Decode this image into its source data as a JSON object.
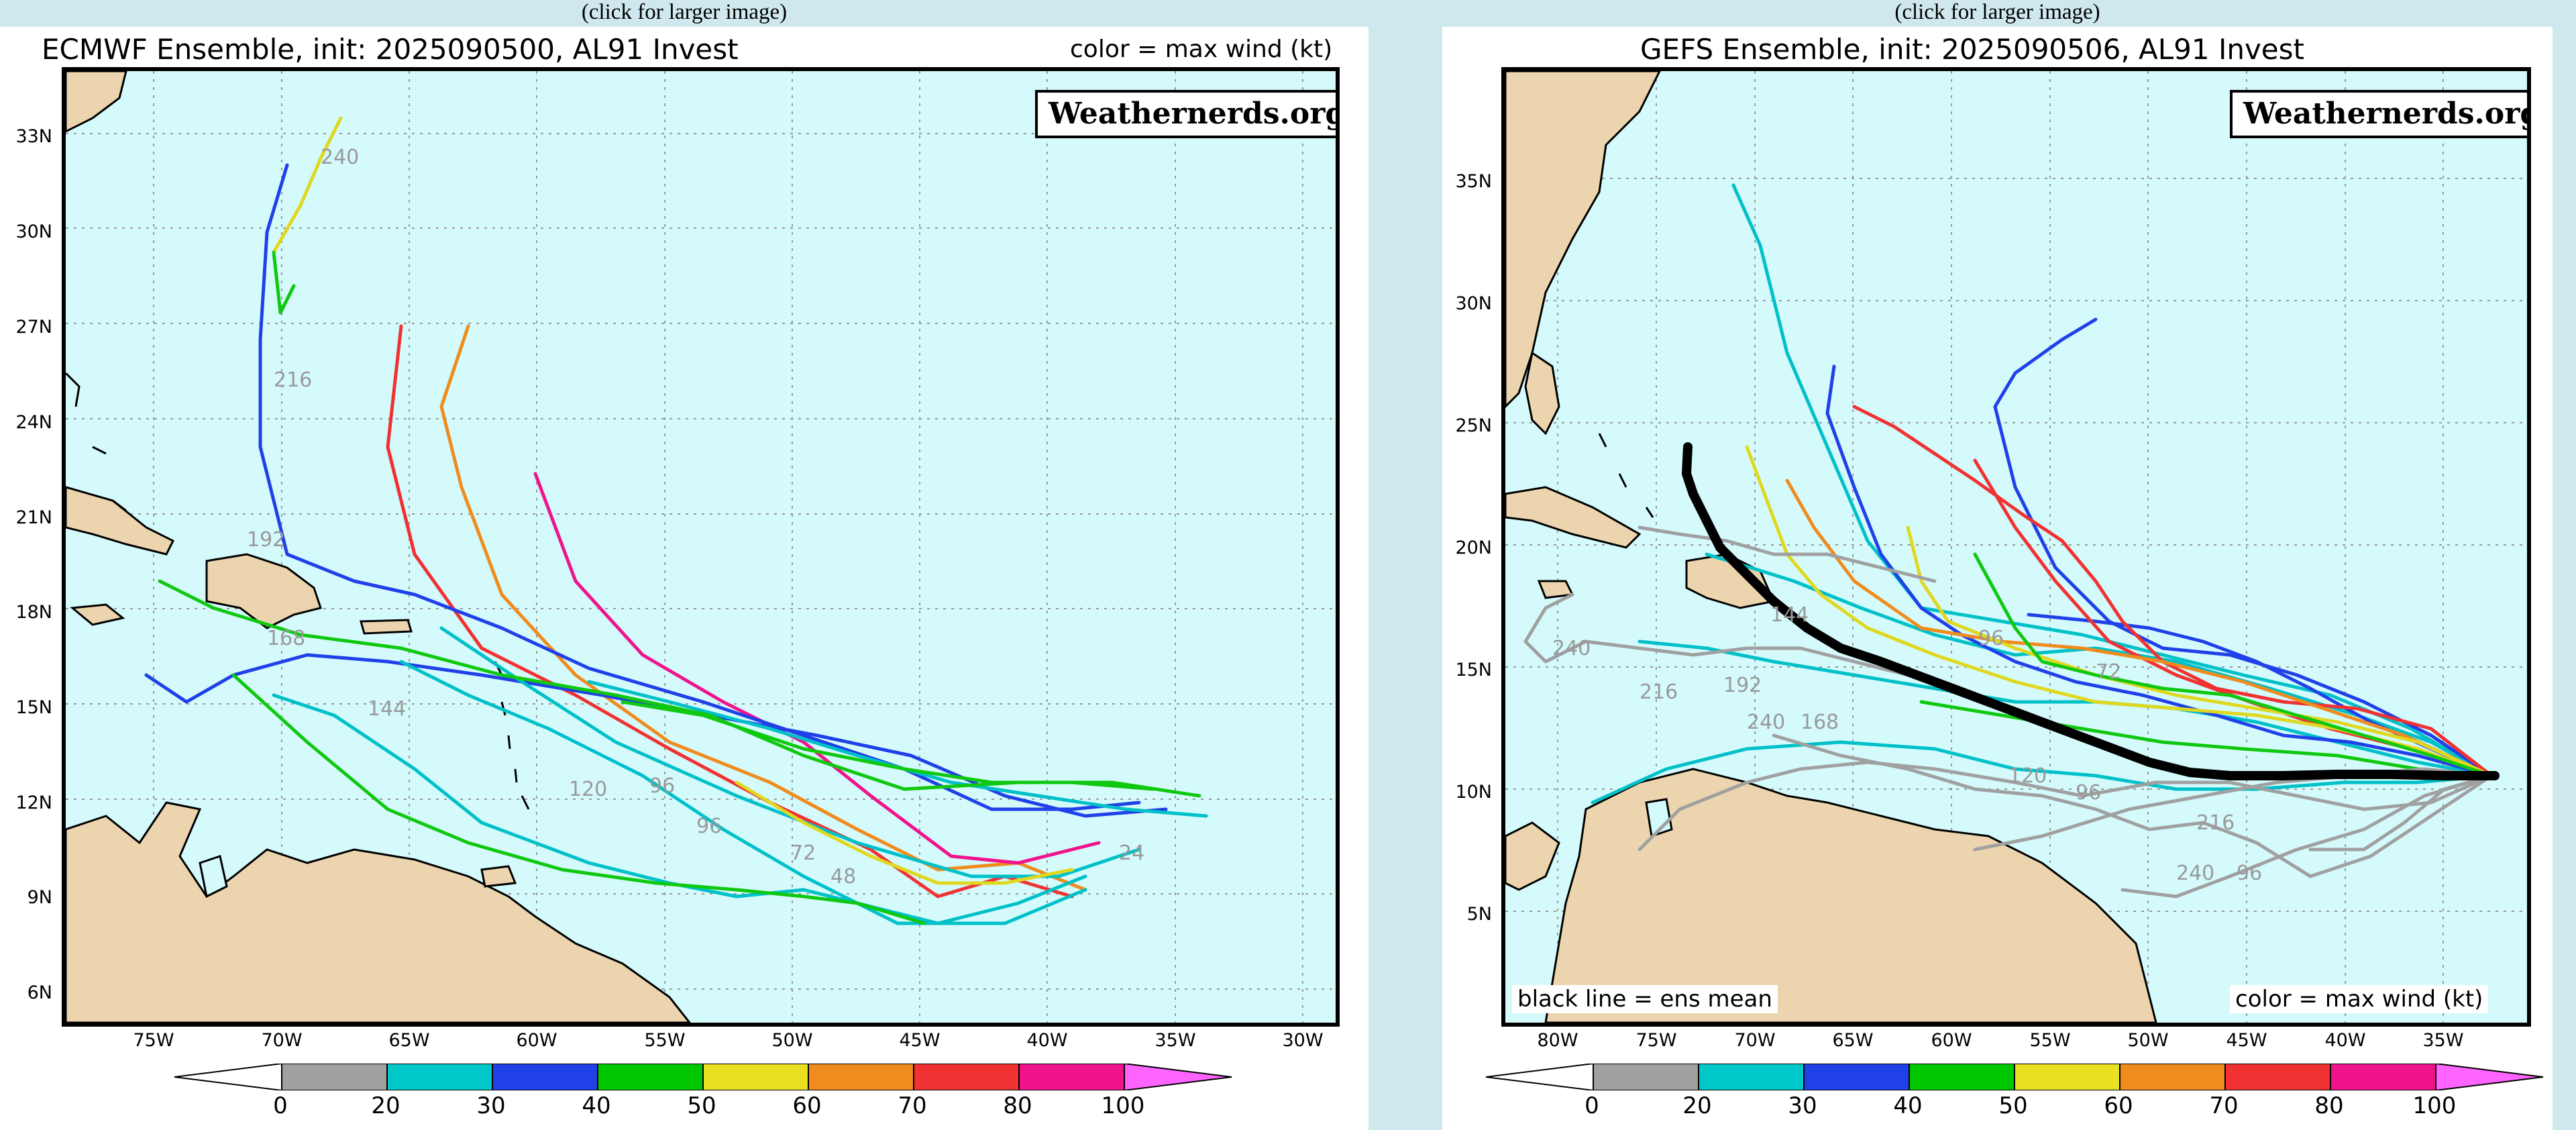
{
  "left": {
    "caption": "(click for larger image)",
    "title": "ECMWF Ensemble, init: 2025090500, AL91 Invest",
    "legend_note": "color = max wind (kt)",
    "watermark": "Weathernerds.org",
    "lat_labels": [
      "33N",
      "30N",
      "27N",
      "24N",
      "21N",
      "18N",
      "15N",
      "12N",
      "9N",
      "6N"
    ],
    "lon_labels": [
      "75W",
      "70W",
      "65W",
      "60W",
      "55W",
      "50W",
      "45W",
      "40W",
      "35W",
      "30W"
    ],
    "forecast_hour_labels": [
      "240",
      "216",
      "192",
      "168",
      "144",
      "120",
      "96",
      "96",
      "72",
      "48",
      "24"
    ]
  },
  "right": {
    "caption": "(click for larger image)",
    "title": "GEFS Ensemble, init: 2025090506, AL91 Invest",
    "mean_note": "black line = ens mean",
    "legend_note": "color = max wind (kt)",
    "watermark": "Weathernerds.org",
    "lat_labels": [
      "35N",
      "30N",
      "25N",
      "20N",
      "15N",
      "10N",
      "5N"
    ],
    "lon_labels": [
      "80W",
      "75W",
      "70W",
      "65W",
      "60W",
      "55W",
      "50W",
      "45W",
      "40W",
      "35W"
    ],
    "forecast_hour_labels": [
      "240",
      "216",
      "192",
      "240",
      "168",
      "144",
      "96",
      "72",
      "240",
      "96",
      "216",
      "120",
      "96"
    ]
  },
  "colorbar": {
    "labels": [
      "0",
      "20",
      "30",
      "40",
      "50",
      "60",
      "70",
      "80",
      "100"
    ],
    "colors": [
      "#ffffff",
      "#a0a0a0",
      "#00c8c8",
      "#2040e8",
      "#00c800",
      "#e8e020",
      "#f08c1e",
      "#f03232",
      "#f0148c",
      "#ff64ff"
    ]
  },
  "wind_colors": {
    "gray": "#a0a0a0",
    "cyan": "#00c0c8",
    "blue": "#2040e8",
    "green": "#10c810",
    "yellow": "#e0d820",
    "orange": "#f08c1e",
    "red": "#f03232",
    "magenta": "#f0148c",
    "pink": "#ff64ff",
    "mean": "#000000"
  },
  "land_color": "#ecd5ae",
  "ocean_color": "#d4fafc"
}
